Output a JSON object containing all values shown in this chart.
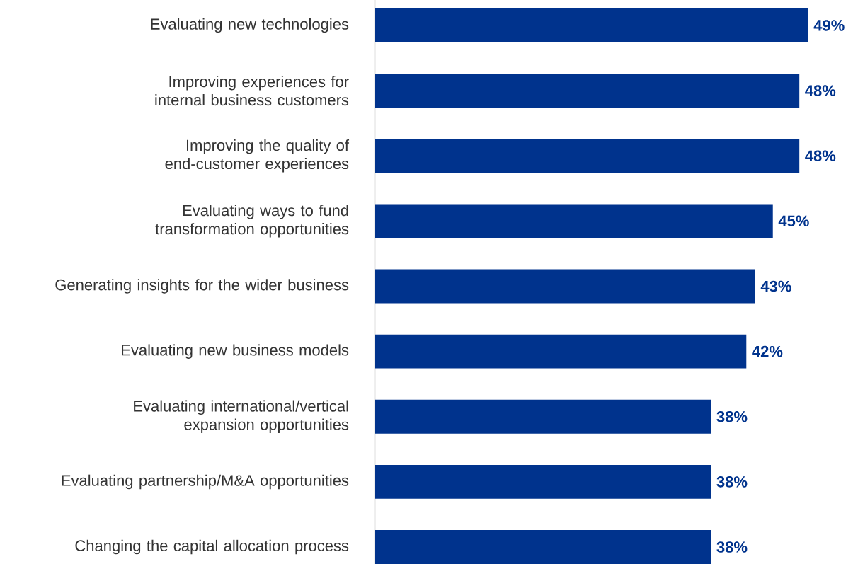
{
  "chart_data": {
    "type": "bar",
    "orientation": "horizontal",
    "categories": [
      "Evaluating new technologies",
      "Improving experiences for internal business customers",
      "Improving the quality of end-customer experiences",
      "Evaluating ways to fund transformation opportunities",
      "Generating insights for the wider business",
      "Evaluating new business models",
      "Evaluating international/vertical expansion opportunities",
      "Evaluating partnership/M&A opportunities",
      "Changing the capital allocation process"
    ],
    "values": [
      49,
      48,
      48,
      45,
      43,
      42,
      38,
      38,
      38
    ],
    "value_labels": [
      "49%",
      "48%",
      "48%",
      "45%",
      "43%",
      "42%",
      "38%",
      "38%",
      "38%"
    ],
    "color": "#00338d"
  }
}
